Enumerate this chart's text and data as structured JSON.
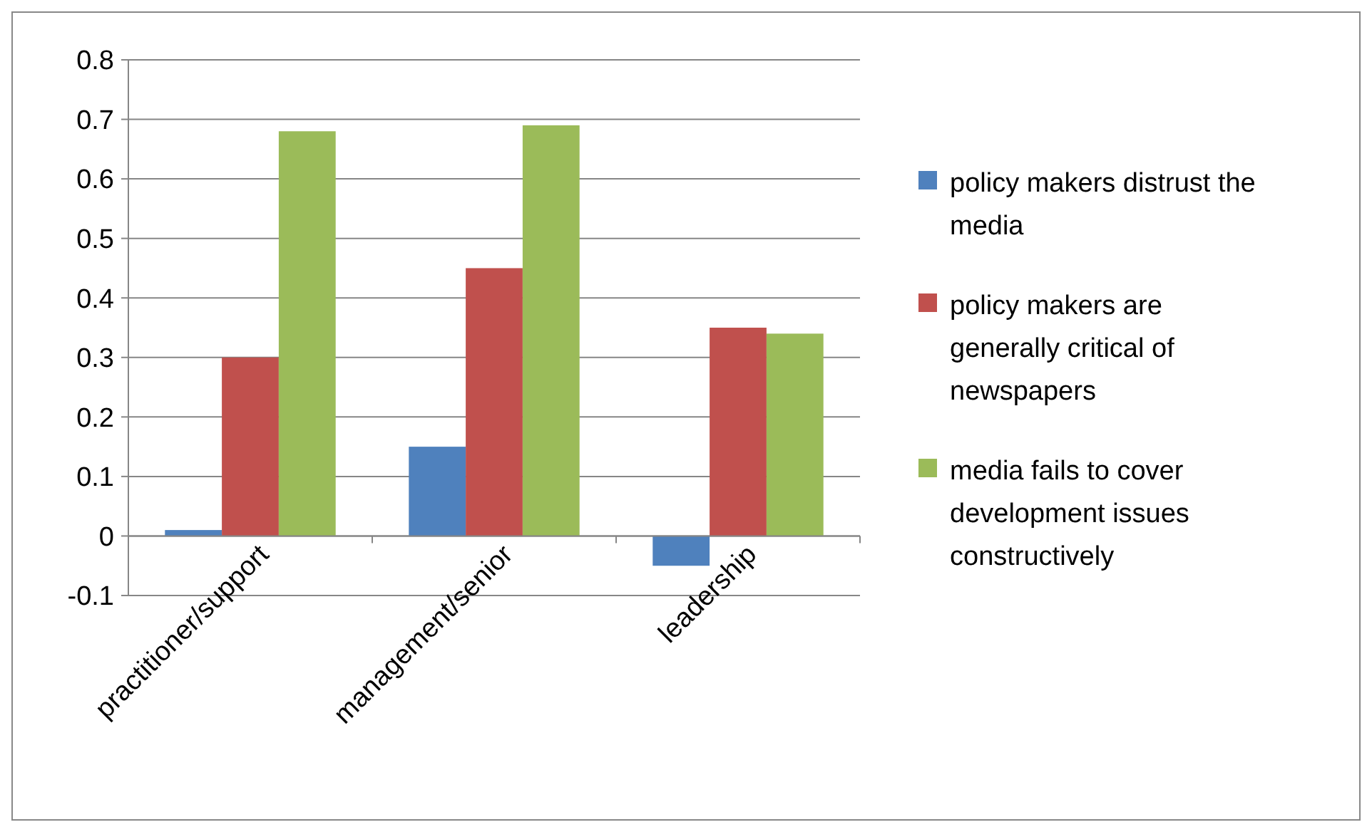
{
  "chart_data": {
    "type": "bar",
    "categories": [
      "practitioner/support",
      "management/senior",
      "leadership"
    ],
    "series": [
      {
        "name": "policy makers distrust the media",
        "color": "#4f81bd",
        "values": [
          0.01,
          0.15,
          -0.05
        ]
      },
      {
        "name": "policy makers are generally critical of newspapers",
        "color": "#c0504d",
        "values": [
          0.3,
          0.45,
          0.35
        ]
      },
      {
        "name": "media fails to cover development issues constructively",
        "color": "#9bbb59",
        "values": [
          0.68,
          0.69,
          0.34
        ]
      }
    ],
    "ylim": [
      -0.1,
      0.8
    ],
    "yticks": [
      -0.1,
      0,
      0.1,
      0.2,
      0.3,
      0.4,
      0.5,
      0.6,
      0.7,
      0.8
    ],
    "grid": "y",
    "legend": "right"
  }
}
